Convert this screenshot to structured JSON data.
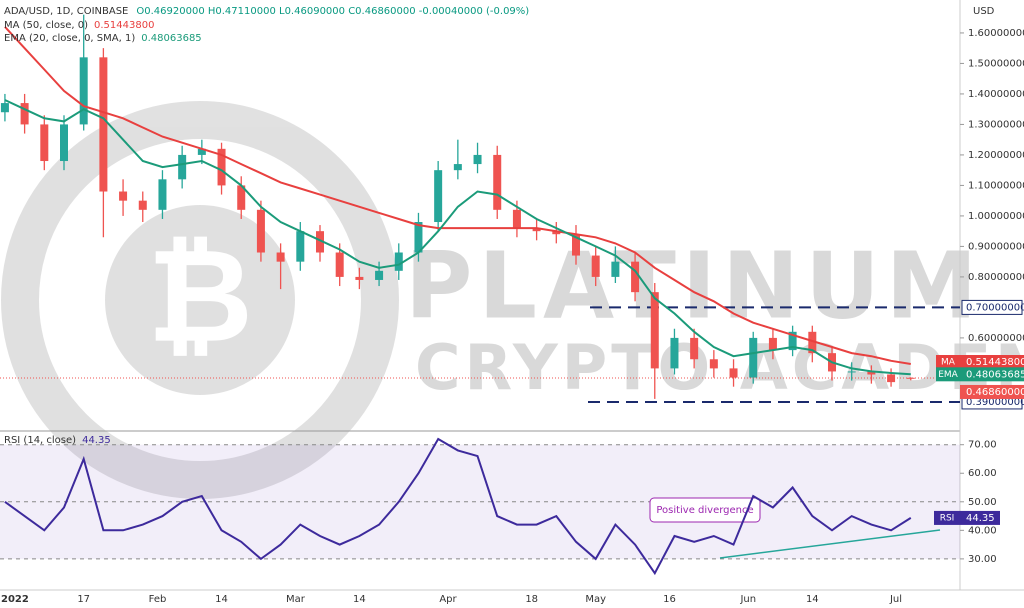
{
  "chart_data": [
    {
      "type": "candlestick",
      "title": "ADA/USD, 1D, COINBASE",
      "subtitle": "O0.46920000 H0.47110000 L0.46090000 C0.46860000 -0.00040000 (-0.09%)",
      "y_axis_label": "USD",
      "watermark": [
        "PLATINUM",
        "CRYPTO ACADEMY"
      ],
      "watermark_logo": "₿",
      "up_color": "#26a69a",
      "down_color": "#ef5350",
      "close_label": "0.46860000",
      "xlim": [
        -1,
        194
      ],
      "xticks": [
        {
          "value": 0,
          "label": "2022"
        },
        {
          "value": 16,
          "label": "17"
        },
        {
          "value": 31,
          "label": "Feb"
        },
        {
          "value": 44,
          "label": "14"
        },
        {
          "value": 59,
          "label": "Mar"
        },
        {
          "value": 72,
          "label": "14"
        },
        {
          "value": 90,
          "label": "Apr"
        },
        {
          "value": 107,
          "label": "18"
        },
        {
          "value": 120,
          "label": "May"
        },
        {
          "value": 135,
          "label": "16"
        },
        {
          "value": 151,
          "label": "Jun"
        },
        {
          "value": 164,
          "label": "14"
        },
        {
          "value": 181,
          "label": "Jul"
        }
      ],
      "ylim": [
        0.298,
        1.708
      ],
      "yticks": [
        {
          "value": 1.6,
          "label": "1.60000000"
        },
        {
          "value": 1.5,
          "label": "1.50000000"
        },
        {
          "value": 1.4,
          "label": "1.40000000"
        },
        {
          "value": 1.3,
          "label": "1.30000000"
        },
        {
          "value": 1.2,
          "label": "1.20000000"
        },
        {
          "value": 1.1,
          "label": "1.10000000"
        },
        {
          "value": 1.0,
          "label": "1.00000000"
        },
        {
          "value": 0.9,
          "label": "0.90000000"
        },
        {
          "value": 0.8,
          "label": "0.80000000"
        },
        {
          "value": 0.6,
          "label": "0.60000000"
        }
      ],
      "hlines": [
        {
          "value": 0.7,
          "label": "0.70000000"
        },
        {
          "value": 0.39,
          "label": "0.39000000"
        }
      ],
      "x": [
        0,
        4,
        8,
        12,
        16,
        20,
        24,
        28,
        32,
        36,
        40,
        44,
        48,
        52,
        56,
        60,
        64,
        68,
        72,
        76,
        80,
        84,
        88,
        92,
        96,
        100,
        104,
        108,
        112,
        116,
        120,
        124,
        128,
        132,
        136,
        140,
        144,
        148,
        152,
        156,
        160,
        164,
        168,
        172,
        176,
        180,
        184
      ],
      "open": [
        1.34,
        1.37,
        1.3,
        1.18,
        1.3,
        1.52,
        1.08,
        1.05,
        1.02,
        1.12,
        1.2,
        1.22,
        1.1,
        1.02,
        0.88,
        0.85,
        0.95,
        0.88,
        0.8,
        0.79,
        0.82,
        0.88,
        0.98,
        1.15,
        1.17,
        1.2,
        1.02,
        0.96,
        0.95,
        0.94,
        0.87,
        0.8,
        0.85,
        0.75,
        0.5,
        0.6,
        0.53,
        0.5,
        0.47,
        0.6,
        0.56,
        0.62,
        0.55,
        0.49,
        0.49,
        0.48,
        0.4692
      ],
      "high": [
        1.4,
        1.4,
        1.33,
        1.33,
        1.66,
        1.55,
        1.12,
        1.08,
        1.15,
        1.23,
        1.25,
        1.24,
        1.13,
        1.05,
        0.91,
        0.98,
        0.97,
        0.91,
        0.83,
        0.85,
        0.91,
        1.01,
        1.18,
        1.25,
        1.24,
        1.23,
        1.05,
        0.99,
        0.98,
        0.97,
        0.9,
        0.9,
        0.88,
        0.78,
        0.63,
        0.63,
        0.56,
        0.53,
        0.62,
        0.63,
        0.64,
        0.64,
        0.57,
        0.52,
        0.51,
        0.5,
        0.4711
      ],
      "low": [
        1.31,
        1.27,
        1.15,
        1.15,
        1.28,
        0.93,
        1.0,
        0.98,
        0.99,
        1.09,
        1.17,
        1.07,
        0.99,
        0.85,
        0.76,
        0.82,
        0.85,
        0.77,
        0.76,
        0.77,
        0.79,
        0.85,
        0.95,
        1.12,
        1.14,
        0.99,
        0.93,
        0.92,
        0.91,
        0.84,
        0.77,
        0.78,
        0.72,
        0.4,
        0.48,
        0.5,
        0.47,
        0.44,
        0.45,
        0.53,
        0.54,
        0.52,
        0.46,
        0.46,
        0.45,
        0.44,
        0.4609
      ],
      "close": [
        1.37,
        1.3,
        1.18,
        1.3,
        1.52,
        1.08,
        1.05,
        1.02,
        1.12,
        1.2,
        1.22,
        1.1,
        1.02,
        0.88,
        0.85,
        0.95,
        0.88,
        0.8,
        0.79,
        0.82,
        0.88,
        0.98,
        1.15,
        1.17,
        1.2,
        1.02,
        0.96,
        0.95,
        0.94,
        0.87,
        0.8,
        0.85,
        0.75,
        0.5,
        0.6,
        0.53,
        0.5,
        0.47,
        0.6,
        0.56,
        0.62,
        0.55,
        0.49,
        0.49,
        0.48,
        0.455,
        0.4686
      ],
      "series": [
        {
          "name": "MA",
          "legend": "MA (50, close, 0)",
          "last_label": "0.51443800",
          "color": "#e8403f",
          "values": [
            1.62,
            1.55,
            1.48,
            1.41,
            1.36,
            1.34,
            1.32,
            1.29,
            1.26,
            1.24,
            1.22,
            1.2,
            1.17,
            1.14,
            1.11,
            1.09,
            1.07,
            1.05,
            1.03,
            1.01,
            0.99,
            0.97,
            0.96,
            0.96,
            0.96,
            0.96,
            0.96,
            0.96,
            0.95,
            0.94,
            0.93,
            0.91,
            0.88,
            0.83,
            0.79,
            0.75,
            0.72,
            0.68,
            0.65,
            0.63,
            0.61,
            0.59,
            0.57,
            0.55,
            0.54,
            0.525,
            0.5144
          ]
        },
        {
          "name": "EMA",
          "legend": "EMA (20, close, 0, SMA, 1)",
          "last_label": "0.48063685",
          "color": "#1b9b7a",
          "values": [
            1.38,
            1.35,
            1.32,
            1.31,
            1.35,
            1.32,
            1.25,
            1.18,
            1.16,
            1.17,
            1.18,
            1.15,
            1.1,
            1.03,
            0.98,
            0.95,
            0.92,
            0.89,
            0.85,
            0.83,
            0.84,
            0.88,
            0.95,
            1.03,
            1.08,
            1.07,
            1.03,
            0.99,
            0.96,
            0.93,
            0.9,
            0.87,
            0.82,
            0.73,
            0.68,
            0.62,
            0.57,
            0.54,
            0.55,
            0.56,
            0.57,
            0.56,
            0.52,
            0.5,
            0.49,
            0.485,
            0.4806
          ]
        }
      ]
    },
    {
      "type": "line",
      "title": "RSI (14, close)",
      "annotation": "Positive divergence",
      "ylim": [
        19.8,
        74.1
      ],
      "yticks": [
        {
          "value": 70,
          "label": "70.00"
        },
        {
          "value": 60,
          "label": "60.00"
        },
        {
          "value": 50,
          "label": "50.00"
        },
        {
          "value": 40,
          "label": "40.00"
        },
        {
          "value": 30,
          "label": "30.00"
        }
      ],
      "levels": [
        70,
        50,
        30
      ],
      "band": [
        30,
        70
      ],
      "band_color": "#7e57c2",
      "x": [
        0,
        4,
        8,
        12,
        16,
        20,
        24,
        28,
        32,
        36,
        40,
        44,
        48,
        52,
        56,
        60,
        64,
        68,
        72,
        76,
        80,
        84,
        88,
        92,
        96,
        100,
        104,
        108,
        112,
        116,
        120,
        124,
        128,
        132,
        136,
        140,
        144,
        148,
        152,
        156,
        160,
        164,
        168,
        172,
        176,
        180,
        184
      ],
      "series": [
        {
          "name": "RSI",
          "color": "#3d2a9c",
          "values": [
            50,
            45,
            40,
            48,
            65,
            40,
            40,
            42,
            45,
            50,
            52,
            40,
            36,
            30,
            35,
            42,
            38,
            35,
            38,
            42,
            50,
            60,
            72,
            68,
            66,
            45,
            42,
            42,
            45,
            36,
            30,
            42,
            35,
            25,
            38,
            36,
            38,
            35,
            52,
            48,
            55,
            45,
            40,
            45,
            42,
            40,
            44.35
          ]
        }
      ]
    }
  ]
}
